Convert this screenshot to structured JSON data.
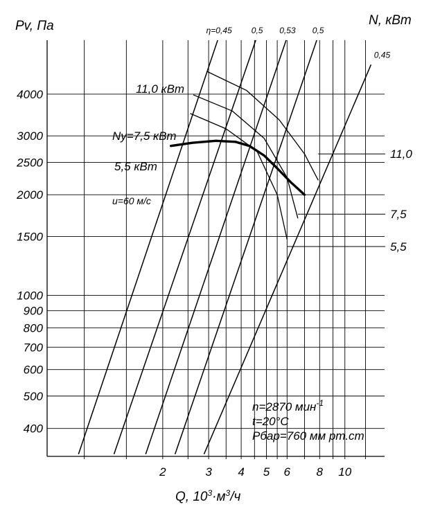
{
  "chart_data": {
    "type": "line",
    "title": "",
    "ylabel": "Pv, Па",
    "ylabel_right": "N, кВт",
    "xlabel_parts": [
      "Q, 10",
      "3",
      "·м",
      "3",
      "/ч"
    ],
    "x_scale": "log",
    "y_scale": "log",
    "xlim": [
      0.72,
      14.2
    ],
    "ylim": [
      330,
      5800
    ],
    "grid": true,
    "x_ticks": [
      {
        "value": 2,
        "label": "2"
      },
      {
        "value": 3,
        "label": "3"
      },
      {
        "value": 4,
        "label": "4"
      },
      {
        "value": 5,
        "label": "5"
      },
      {
        "value": 6,
        "label": "6"
      },
      {
        "value": 8,
        "label": "8"
      },
      {
        "value": 10,
        "label": "10"
      }
    ],
    "x_grid": [
      1.0,
      1.45,
      2,
      2.5,
      3,
      3.5,
      4,
      4.5,
      5,
      5.5,
      6,
      7,
      8,
      9,
      10,
      12
    ],
    "y_ticks": [
      {
        "value": 400,
        "label": "400"
      },
      {
        "value": 500,
        "label": "500"
      },
      {
        "value": 600,
        "label": "600"
      },
      {
        "value": 700,
        "label": "700"
      },
      {
        "value": 800,
        "label": "800"
      },
      {
        "value": 900,
        "label": "900"
      },
      {
        "value": 1000,
        "label": "1000"
      },
      {
        "value": 1500,
        "label": "1500"
      },
      {
        "value": 2000,
        "label": "2000"
      },
      {
        "value": 2500,
        "label": "2500"
      },
      {
        "value": 3000,
        "label": "3000"
      },
      {
        "value": 4000,
        "label": "4000"
      }
    ],
    "efficiency_lines": [
      {
        "label": "η=0,45",
        "points": [
          [
            0.95,
            335
          ],
          [
            3.25,
            5800
          ]
        ]
      },
      {
        "label": "0,5",
        "points": [
          [
            1.3,
            335
          ],
          [
            4.55,
            5800
          ]
        ]
      },
      {
        "label": "0,53",
        "points": [
          [
            1.72,
            335
          ],
          [
            5.95,
            5800
          ]
        ]
      },
      {
        "label": "0,5",
        "points": [
          [
            2.23,
            335
          ],
          [
            7.8,
            5800
          ]
        ]
      },
      {
        "label": "0,45",
        "points": [
          [
            2.88,
            335
          ],
          [
            12.6,
            4900
          ]
        ]
      }
    ],
    "power_curves": [
      {
        "name": "11,0 кВт",
        "points": [
          [
            2.95,
            4680
          ],
          [
            4.2,
            4100
          ],
          [
            5.6,
            3350
          ],
          [
            7.0,
            2650
          ],
          [
            7.9,
            2210
          ]
        ]
      },
      {
        "name": "Nу=7,5 кВт",
        "points": [
          [
            2.62,
            3980
          ],
          [
            3.7,
            3560
          ],
          [
            4.9,
            2950
          ],
          [
            6.0,
            2250
          ],
          [
            6.6,
            1700
          ]
        ]
      },
      {
        "name": "5,5 кВт",
        "points": [
          [
            2.55,
            3500
          ],
          [
            3.5,
            3150
          ],
          [
            4.6,
            2700
          ],
          [
            5.5,
            2000
          ],
          [
            6.0,
            1470
          ]
        ]
      }
    ],
    "pressure_curve": {
      "name": "u=60 м/с",
      "points": [
        [
          2.15,
          2800
        ],
        [
          2.6,
          2860
        ],
        [
          3.2,
          2900
        ],
        [
          3.8,
          2880
        ],
        [
          4.3,
          2800
        ],
        [
          4.9,
          2620
        ],
        [
          5.5,
          2400
        ],
        [
          6.2,
          2180
        ],
        [
          7.0,
          2000
        ]
      ]
    },
    "right_scale": [
      {
        "label": "11,0",
        "at": [
          7.9,
          2650
        ]
      },
      {
        "label": "7,5",
        "at": [
          6.6,
          1750
        ]
      },
      {
        "label": "5,5",
        "at": [
          6.0,
          1400
        ]
      }
    ],
    "notes": [
      "n=2870 мин",
      "-1",
      "t=20°C",
      "Pбар=760 мм рт.ст"
    ]
  }
}
